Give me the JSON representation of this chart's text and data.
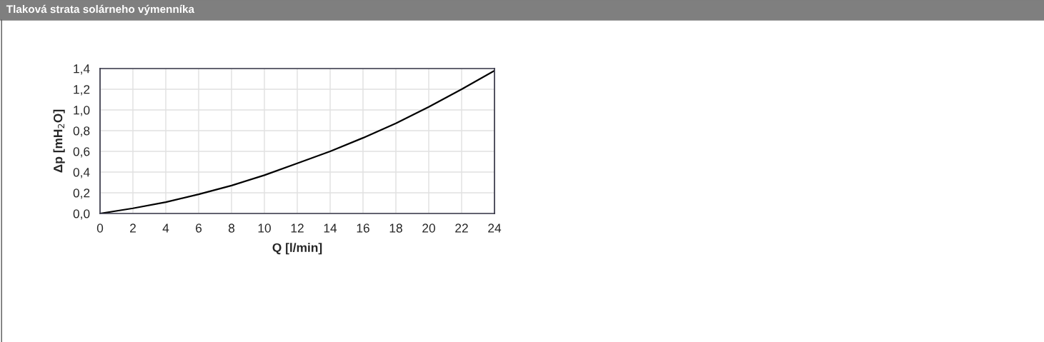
{
  "chart_data": {
    "type": "line",
    "title": "Tlaková strata solárneho výmenníka",
    "xlabel": "Q [l/min]",
    "ylabel": "Δp [mH$_{2}$O]",
    "x": [
      0,
      2,
      4,
      6,
      8,
      10,
      12,
      14,
      16,
      18,
      20,
      22,
      24
    ],
    "series": [
      {
        "color": "#000000",
        "values": [
          0,
          0.05,
          0.11,
          0.185,
          0.27,
          0.37,
          0.485,
          0.6,
          0.73,
          0.87,
          1.03,
          1.2,
          1.38
        ]
      }
    ],
    "xlim": [
      0,
      24
    ],
    "xticks": [
      0,
      2,
      4,
      6,
      8,
      10,
      12,
      14,
      16,
      18,
      20,
      22,
      24
    ],
    "ylim": [
      0,
      1.4
    ],
    "yticks": [
      {
        "value": 0,
        "label": "0,0"
      },
      {
        "value": 0.2,
        "label": "0,2"
      },
      {
        "value": 0.4,
        "label": "0,4"
      },
      {
        "value": 0.6,
        "label": "0,6"
      },
      {
        "value": 0.8,
        "label": "0,8"
      },
      {
        "value": 1.0,
        "label": "1,0"
      },
      {
        "value": 1.2,
        "label": "1,2"
      },
      {
        "value": 1.4,
        "label": "1,4"
      }
    ],
    "grid": true,
    "marker": "none",
    "line_style": "solid",
    "legend": false
  }
}
